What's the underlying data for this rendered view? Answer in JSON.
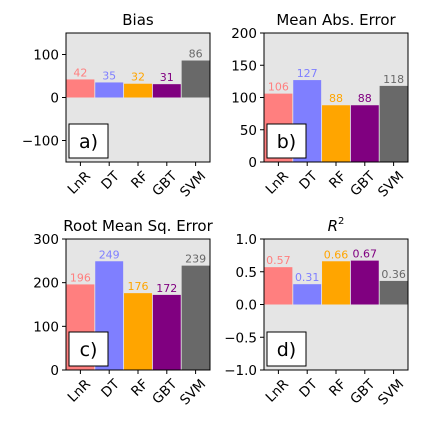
{
  "colors": {
    "panel_bg": "#e5e5e5",
    "bars": [
      "#ff7f7f",
      "#7f7fff",
      "#ffa500",
      "#800080",
      "#696969"
    ],
    "labels": [
      "#ff7f7f",
      "#7f7fff",
      "#ffa500",
      "#800080",
      "#696969"
    ]
  },
  "chart_data": [
    {
      "type": "bar",
      "title": "Bias",
      "panel_label": "a)",
      "categories": [
        "LnR",
        "DT",
        "RF",
        "GBT",
        "SVM"
      ],
      "values": [
        42,
        35,
        32,
        31,
        86
      ],
      "value_labels": [
        "42",
        "35",
        "32",
        "31",
        "86"
      ],
      "ylim": [
        -150,
        150
      ],
      "yticks": [
        -100,
        0,
        100
      ],
      "ytick_labels": [
        "−100",
        "0",
        "100"
      ],
      "grid": false
    },
    {
      "type": "bar",
      "title": "Mean Abs. Error",
      "panel_label": "b)",
      "categories": [
        "LnR",
        "DT",
        "RF",
        "GBT",
        "SVM"
      ],
      "values": [
        106,
        127,
        88,
        88,
        118
      ],
      "value_labels": [
        "106",
        "127",
        "88",
        "88",
        "118"
      ],
      "ylim": [
        0,
        200
      ],
      "yticks": [
        0,
        50,
        100,
        150,
        200
      ],
      "ytick_labels": [
        "0",
        "50",
        "100",
        "150",
        "200"
      ],
      "grid": false
    },
    {
      "type": "bar",
      "title": "Root Mean Sq. Error",
      "panel_label": "c)",
      "categories": [
        "LnR",
        "DT",
        "RF",
        "GBT",
        "SVM"
      ],
      "values": [
        196,
        249,
        176,
        172,
        239
      ],
      "value_labels": [
        "196",
        "249",
        "176",
        "172",
        "239"
      ],
      "ylim": [
        0,
        300
      ],
      "yticks": [
        0,
        100,
        200,
        300
      ],
      "ytick_labels": [
        "0",
        "100",
        "200",
        "300"
      ],
      "grid": false
    },
    {
      "type": "bar",
      "title": "R",
      "title_sup": "2",
      "panel_label": "d)",
      "categories": [
        "LnR",
        "DT",
        "RF",
        "GBT",
        "SVM"
      ],
      "values": [
        0.57,
        0.31,
        0.66,
        0.67,
        0.36
      ],
      "value_labels": [
        "0.57",
        "0.31",
        "0.66",
        "0.67",
        "0.36"
      ],
      "ylim": [
        -1.0,
        1.0
      ],
      "yticks": [
        -1.0,
        -0.5,
        0.0,
        0.5,
        1.0
      ],
      "ytick_labels": [
        "−1.0",
        "−0.5",
        "0.0",
        "0.5",
        "1.0"
      ],
      "grid": false
    }
  ]
}
